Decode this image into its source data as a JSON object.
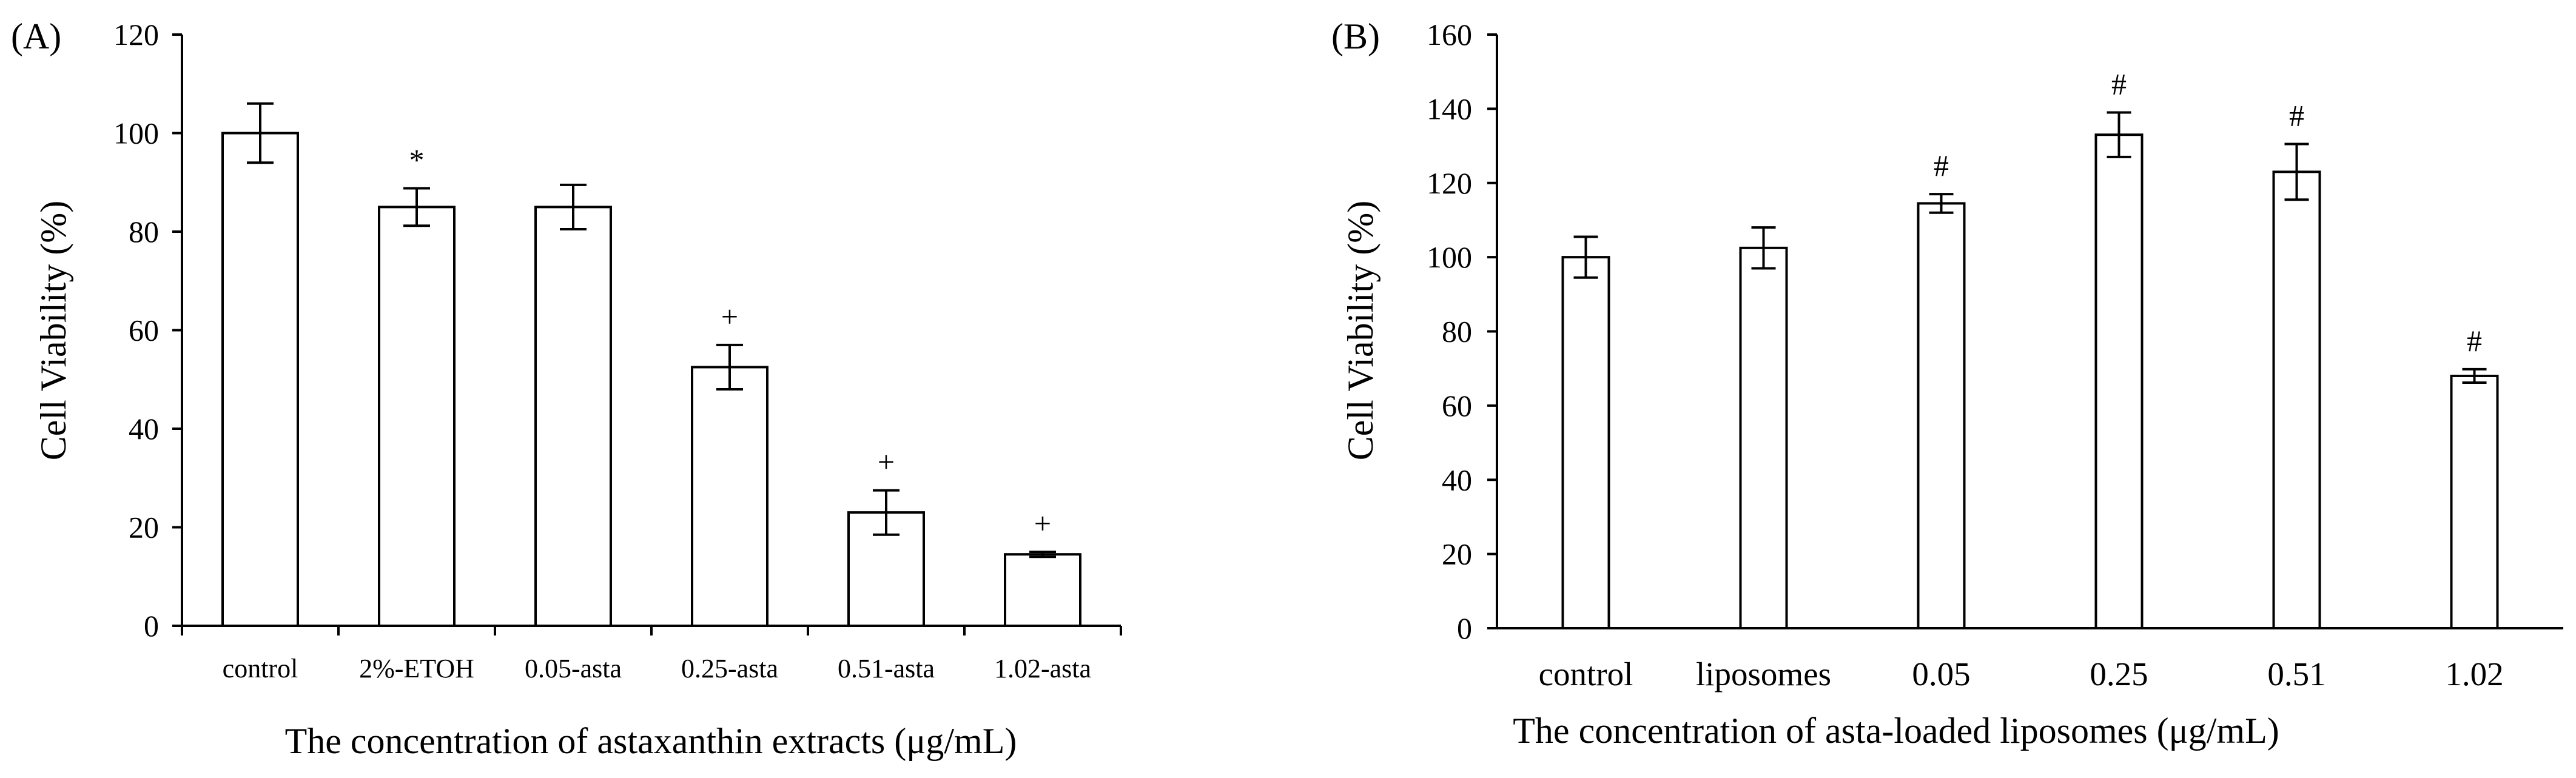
{
  "chart_data": [
    {
      "type": "bar",
      "panel_label": "(A)",
      "ylabel": "Cell Viability (%)",
      "xlabel": "The concentration of astaxanthin extracts (μg/mL)",
      "ylim": [
        0,
        120
      ],
      "yticks": [
        0,
        20,
        40,
        60,
        80,
        100,
        120
      ],
      "categories": [
        "control",
        "2%-ETOH",
        "0.05-asta",
        "0.25-asta",
        "0.51-asta",
        "1.02-asta"
      ],
      "values": [
        100,
        85,
        85,
        52.5,
        23,
        14.5
      ],
      "errors": [
        6,
        3.8,
        4.5,
        4.5,
        4.5,
        0.5
      ],
      "annotations": [
        "",
        "*",
        "",
        "+",
        "+",
        "+"
      ],
      "grid": false
    },
    {
      "type": "bar",
      "panel_label": "(B)",
      "ylabel": "Cell Viability (%)",
      "xlabel": "The concentration of asta-loaded liposomes (μg/mL)",
      "ylim": [
        0,
        160
      ],
      "yticks": [
        0,
        20,
        40,
        60,
        80,
        100,
        120,
        140,
        160
      ],
      "categories": [
        "control",
        "liposomes",
        "0.05",
        "0.25",
        "0.51",
        "1.02"
      ],
      "values": [
        100,
        102.5,
        114.5,
        133,
        123,
        68
      ],
      "errors": [
        5.5,
        5.5,
        2.5,
        6,
        7.5,
        1.8
      ],
      "annotations": [
        "",
        "",
        "#",
        "#",
        "#",
        "#"
      ],
      "grid": false
    }
  ]
}
